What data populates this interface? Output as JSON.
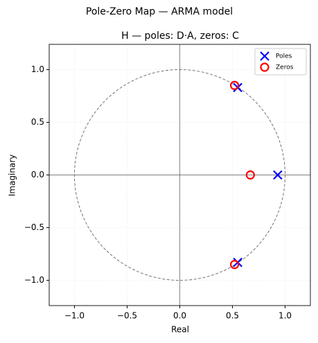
{
  "chart_data": {
    "type": "scatter",
    "suptitle": "Pole-Zero Map  —  ARMA model",
    "title": "H  —  poles: D·A,  zeros: C",
    "xlabel": "Real",
    "ylabel": "Imaginary",
    "xlim": [
      -1.24,
      1.24
    ],
    "ylim": [
      -1.24,
      1.24
    ],
    "xticks": [
      {
        "value": -1,
        "label": "−1.0"
      },
      {
        "value": -0.5,
        "label": "−0.5"
      },
      {
        "value": 0,
        "label": "0.0"
      },
      {
        "value": 0.5,
        "label": "0.5"
      },
      {
        "value": 1,
        "label": "1.0"
      }
    ],
    "yticks": [
      {
        "value": -1,
        "label": "−1.0"
      },
      {
        "value": -0.5,
        "label": "−0.5"
      },
      {
        "value": 0,
        "label": "0.0"
      },
      {
        "value": 0.5,
        "label": "0.5"
      },
      {
        "value": 1,
        "label": "1.0"
      }
    ],
    "grid": true,
    "unit_circle": true,
    "legend": "upper right",
    "series": [
      {
        "name": "Poles",
        "color": "#0000ff",
        "marker": "x",
        "x": [
          0.93,
          0.55,
          0.55
        ],
        "values": [
          0,
          0.83,
          -0.83
        ]
      },
      {
        "name": "Zeros",
        "color": "#ff0000",
        "marker": "o",
        "x": [
          0.67,
          0.52,
          0.52
        ],
        "values": [
          0,
          0.85,
          -0.85
        ]
      }
    ]
  }
}
